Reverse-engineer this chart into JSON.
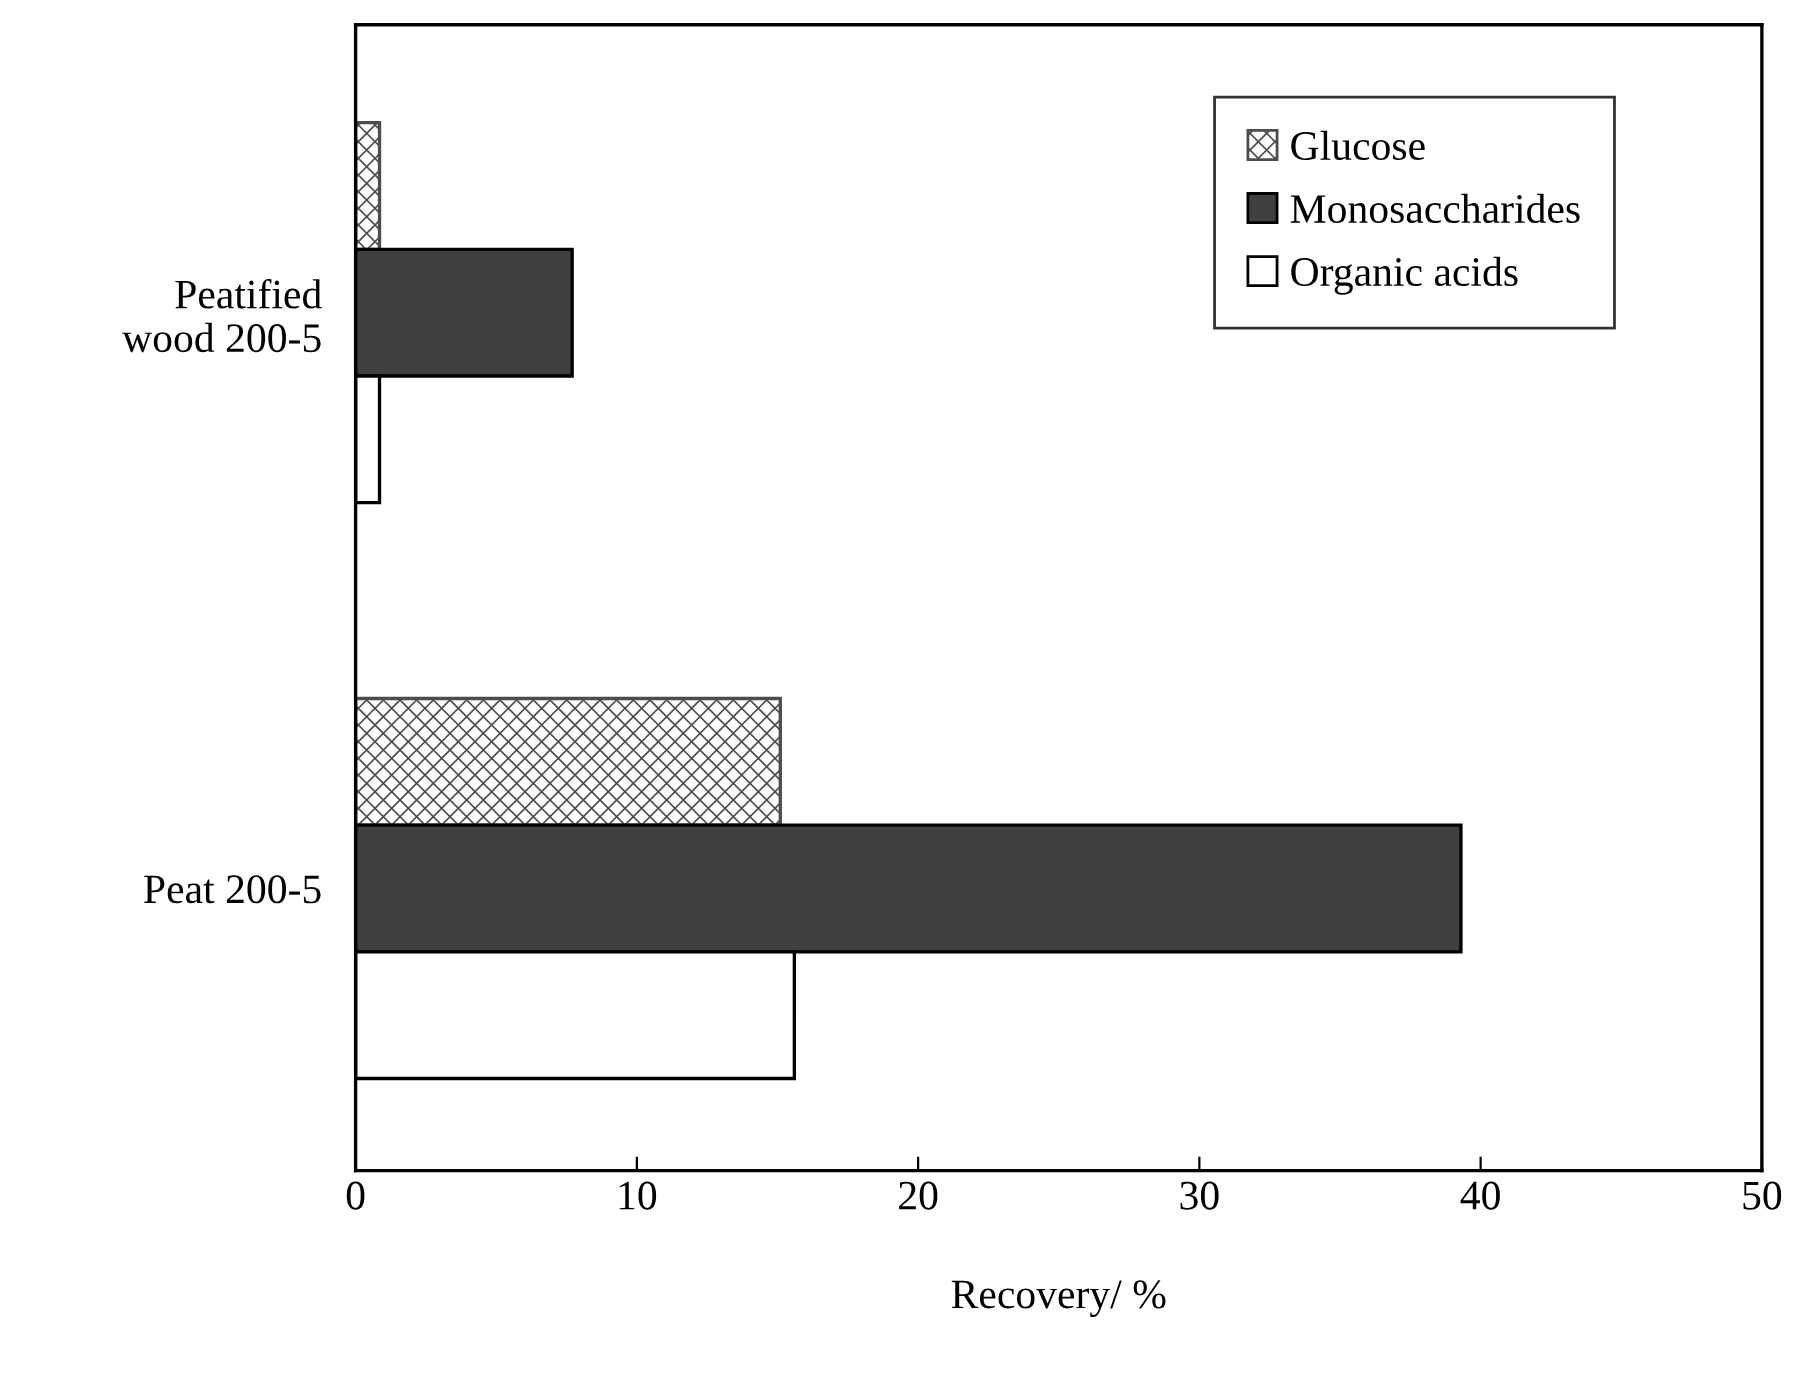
{
  "chart_data": {
    "type": "bar",
    "orientation": "horizontal",
    "xlabel": "Recovery/ %",
    "categories": [
      "Peatified\nwood 200-5",
      "Peat 200-5"
    ],
    "series": [
      {
        "name": "Glucose",
        "color": "#4d4d4d",
        "values": [
          0.85,
          15.1
        ]
      },
      {
        "name": "Monosaccharides",
        "color": "#404040",
        "values": [
          7.7,
          39.3
        ]
      },
      {
        "name": "Organic acids",
        "color": "#ffffff",
        "values": [
          0.85,
          15.6
        ]
      }
    ],
    "xlim": [
      0,
      50
    ],
    "xticks": [
      0,
      10,
      20,
      30,
      40,
      50
    ],
    "grid": false,
    "legend": "top right"
  }
}
